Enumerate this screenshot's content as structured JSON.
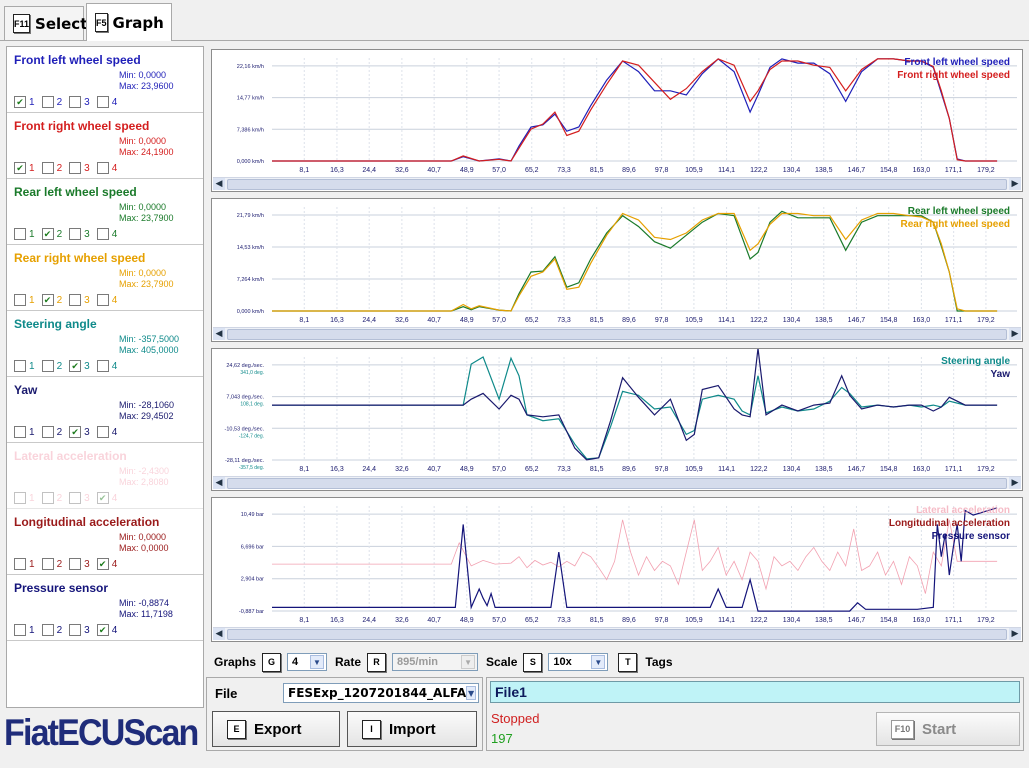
{
  "tabs": [
    {
      "key": "F11",
      "label": "Select"
    },
    {
      "key": "F5",
      "label": "Graph"
    }
  ],
  "signals": [
    {
      "name": "Front left wheel speed",
      "min": "Min: 0,0000",
      "max": "Max: 23,9600",
      "color": "#1f1fb8",
      "checked": [
        true,
        false,
        false,
        false
      ]
    },
    {
      "name": "Front right wheel speed",
      "min": "Min: 0,0000",
      "max": "Max: 24,1900",
      "color": "#d41e1e",
      "checked": [
        true,
        false,
        false,
        false
      ]
    },
    {
      "name": "Rear left wheel speed",
      "min": "Min: 0,0000",
      "max": "Max: 23,7900",
      "color": "#1a7a2a",
      "checked": [
        false,
        true,
        false,
        false
      ]
    },
    {
      "name": "Rear right wheel speed",
      "min": "Min: 0,0000",
      "max": "Max: 23,7900",
      "color": "#e6a000",
      "checked": [
        false,
        true,
        false,
        false
      ]
    },
    {
      "name": "Steering angle",
      "min": "Min: -357,5000",
      "max": "Max: 405,0000",
      "color": "#0f8a8a",
      "checked": [
        false,
        false,
        true,
        false
      ]
    },
    {
      "name": "Yaw",
      "min": "Min: -28,1060",
      "max": "Max: 29,4502",
      "color": "#1a1a6e",
      "checked": [
        false,
        false,
        true,
        false
      ]
    },
    {
      "name": "Lateral acceleration",
      "min": "Min: -2,4300",
      "max": "Max: 2,8080",
      "color": "#f2a0b0",
      "checked": [
        false,
        false,
        false,
        true
      ],
      "faint": true
    },
    {
      "name": "Longitudinal acceleration",
      "min": "Min: 0,0000",
      "max": "Max: 0,0000",
      "color": "#9a1a1a",
      "checked": [
        false,
        false,
        false,
        true
      ]
    },
    {
      "name": "Pressure sensor",
      "min": "Min: -0,8874",
      "max": "Max: 11,7198",
      "color": "#14147a",
      "checked": [
        false,
        false,
        false,
        true
      ]
    }
  ],
  "x_ticks": [
    "8,1",
    "16,3",
    "24,4",
    "32,6",
    "40,7",
    "48,9",
    "57,0",
    "65,2",
    "73,3",
    "81,5",
    "89,6",
    "97,8",
    "105,9",
    "114,1",
    "122,2",
    "130,4",
    "138,5",
    "146,7",
    "154,8",
    "163,0",
    "171,1",
    "179,2"
  ],
  "chart_data": [
    {
      "type": "line",
      "x_range": [
        0,
        187
      ],
      "y_ticks": [
        "22,16 km/h",
        "14,77 km/h",
        "7,386 km/h",
        "0,000 km/h"
      ],
      "ylim": [
        0,
        24.2
      ],
      "series": [
        {
          "name": "Front left wheel speed",
          "color": "#1f1fb8",
          "x": [
            0,
            45,
            48,
            52,
            57,
            60,
            62,
            65,
            68,
            71,
            74,
            77,
            80,
            84,
            88,
            92,
            96,
            100,
            104,
            108,
            112,
            116,
            120,
            122,
            125,
            128,
            132,
            136,
            140,
            144,
            148,
            152,
            156,
            160,
            163,
            166,
            168,
            170,
            172,
            174,
            177,
            182
          ],
          "y": [
            0,
            0,
            1,
            0,
            0.5,
            0,
            3.5,
            8,
            8.5,
            11,
            7,
            8,
            13,
            19,
            23.5,
            21,
            16.5,
            16.5,
            15.5,
            20.5,
            24,
            21,
            11.5,
            15.5,
            22,
            24,
            23,
            23,
            20.5,
            14,
            21,
            24,
            24,
            23.5,
            23.5,
            22,
            16,
            10,
            0.5,
            0,
            0,
            0
          ]
        },
        {
          "name": "Front right wheel speed",
          "color": "#d41e1e",
          "x": [
            0,
            45,
            48,
            52,
            57,
            60,
            62,
            65,
            68,
            71,
            74,
            77,
            80,
            84,
            88,
            92,
            96,
            100,
            104,
            108,
            112,
            116,
            120,
            122,
            125,
            128,
            132,
            136,
            140,
            144,
            148,
            152,
            156,
            160,
            163,
            166,
            168,
            170,
            172,
            174,
            177,
            182
          ],
          "y": [
            0,
            0,
            1.2,
            0,
            0.4,
            0,
            3,
            7.5,
            8.7,
            11.5,
            6,
            7,
            12,
            18,
            23.5,
            22.5,
            18.5,
            14.5,
            17,
            21,
            24,
            22.5,
            14,
            16.5,
            21.5,
            23.5,
            23.5,
            22.5,
            22,
            16.5,
            21.5,
            24,
            24,
            23.5,
            23.5,
            22.2,
            16.5,
            10,
            0.3,
            0,
            0,
            0
          ]
        }
      ]
    },
    {
      "type": "line",
      "x_range": [
        0,
        187
      ],
      "y_ticks": [
        "21,79 km/h",
        "14,53 km/h",
        "7,264 km/h",
        "0,000 km/h"
      ],
      "ylim": [
        0,
        24
      ],
      "series": [
        {
          "name": "Rear left wheel speed",
          "color": "#1a7a2a",
          "x": [
            0,
            45,
            48,
            50,
            52,
            57,
            60,
            62,
            65,
            68,
            71,
            74,
            77,
            80,
            84,
            88,
            92,
            96,
            100,
            104,
            108,
            112,
            116,
            120,
            122,
            125,
            128,
            132,
            136,
            140,
            144,
            148,
            152,
            156,
            160,
            163,
            166,
            168,
            170,
            172,
            174,
            177,
            182
          ],
          "y": [
            0,
            0,
            1,
            0.3,
            1,
            0.2,
            0,
            4,
            9,
            9.2,
            12.5,
            5.5,
            6.5,
            12,
            18,
            22,
            19.5,
            16,
            14.5,
            17.5,
            20.5,
            22.5,
            22,
            12,
            13.5,
            20.5,
            23,
            21.5,
            21.5,
            21.5,
            14,
            20.5,
            22,
            22,
            22,
            22,
            20.5,
            15,
            9,
            0,
            0,
            0,
            0
          ]
        },
        {
          "name": "Rear right wheel speed",
          "color": "#e6a000",
          "x": [
            0,
            45,
            48,
            50,
            52,
            57,
            60,
            62,
            65,
            68,
            71,
            74,
            77,
            80,
            84,
            88,
            92,
            96,
            100,
            104,
            108,
            112,
            116,
            120,
            122,
            125,
            128,
            132,
            136,
            140,
            144,
            148,
            152,
            156,
            160,
            163,
            166,
            168,
            170,
            172,
            174,
            177,
            182
          ],
          "y": [
            0,
            0,
            1.5,
            0.5,
            1.2,
            0.2,
            0,
            3.5,
            8,
            9,
            12,
            5,
            5.5,
            11,
            17.5,
            22.5,
            21,
            17,
            16.5,
            18,
            21,
            22.5,
            22.5,
            14,
            15.5,
            20,
            22.5,
            22.5,
            22,
            22,
            16.5,
            21,
            22.5,
            22.5,
            22,
            21.7,
            20.5,
            15.5,
            9,
            0.5,
            0,
            0,
            0
          ]
        }
      ]
    },
    {
      "type": "line",
      "x_range": [
        0,
        187
      ],
      "y_ticks": [
        "24,62 deg./sec.",
        "7,043 deg./sec.",
        "-10,53 deg./sec.",
        "-28,11 deg./sec."
      ],
      "y_ticks2": [
        "341,0 deg.",
        "108,1 deg.",
        "-124,7 deg.",
        "-357,5 deg."
      ],
      "ylim": [
        -28.11,
        24.62
      ],
      "series": [
        {
          "name": "Steering angle",
          "color": "#0f8a8a",
          "x": [
            0,
            45,
            48,
            50,
            53,
            57,
            60,
            62,
            64,
            68,
            72,
            76,
            79,
            82,
            85,
            88,
            92,
            96,
            100,
            104,
            106,
            108,
            112,
            116,
            118,
            120,
            122,
            124,
            128,
            132,
            136,
            140,
            143,
            145,
            148,
            152,
            156,
            160,
            163,
            166,
            168,
            170,
            174,
            178,
            182
          ],
          "y": [
            0,
            0,
            0,
            21,
            24.6,
            3,
            24,
            15,
            -5,
            -8,
            -7,
            -20,
            -27.5,
            -27,
            -11,
            7,
            5,
            -2,
            -1,
            -15,
            -13,
            3,
            5,
            3,
            -3,
            -5,
            15,
            -4,
            -1,
            -3,
            -2,
            2,
            9,
            6,
            -1,
            0,
            -1,
            0,
            -1,
            0,
            -1,
            2,
            0,
            0,
            0
          ]
        },
        {
          "name": "Yaw",
          "color": "#1a1a6e",
          "x": [
            0,
            45,
            48,
            50,
            53,
            57,
            60,
            62,
            64,
            68,
            72,
            76,
            79,
            82,
            85,
            88,
            92,
            96,
            100,
            104,
            106,
            108,
            112,
            116,
            118,
            120,
            122,
            124,
            128,
            132,
            136,
            140,
            143,
            145,
            148,
            152,
            156,
            160,
            163,
            166,
            168,
            170,
            174,
            178,
            182
          ],
          "y": [
            0,
            0,
            0,
            3,
            6,
            -2,
            5,
            3,
            -5,
            -6,
            -5,
            -22,
            -28,
            -27,
            -8,
            14,
            4,
            -5,
            3,
            -18,
            -15,
            8,
            10,
            -2,
            -5,
            -6,
            29,
            -5,
            0,
            -3,
            0,
            1,
            15,
            5,
            -2,
            0,
            -1,
            0,
            0,
            -3,
            -1,
            4,
            0,
            0,
            0
          ]
        }
      ]
    },
    {
      "type": "line",
      "x_range": [
        0,
        187
      ],
      "y_ticks": [
        "10,49 bar",
        "6,696 bar",
        "2,904 bar",
        "-0,887 bar"
      ],
      "ylim": [
        -0.887,
        10.49
      ],
      "series": [
        {
          "name": "Lateral acceleration",
          "color": "#f2a0b0",
          "x": [
            0,
            40,
            45,
            47,
            50,
            53,
            56,
            60,
            62,
            64,
            66,
            68,
            70,
            72,
            74,
            76,
            78,
            80,
            82,
            84,
            86,
            88,
            90,
            92,
            94,
            96,
            98,
            100,
            102,
            104,
            106,
            108,
            110,
            112,
            114,
            116,
            118,
            120,
            122,
            124,
            126,
            128,
            130,
            132,
            134,
            136,
            138,
            140,
            142,
            144,
            146,
            148,
            150,
            152,
            154,
            156,
            158,
            160,
            162,
            164,
            166,
            168,
            170,
            172,
            176,
            182
          ],
          "y": [
            4.2,
            4.2,
            4.2,
            6.5,
            4.0,
            4.6,
            4.2,
            4.3,
            5.0,
            3.8,
            4.6,
            4.1,
            4.4,
            3.9,
            4.5,
            4.0,
            5.5,
            5.0,
            3.8,
            2.5,
            4.5,
            9.0,
            5.5,
            3.0,
            5.0,
            3.5,
            4.5,
            4.0,
            2.0,
            5.5,
            9.0,
            3.5,
            4.5,
            6.0,
            3.0,
            4.5,
            2.5,
            5.5,
            4.5,
            1.5,
            5.0,
            4.0,
            4.5,
            3.5,
            5.0,
            6.0,
            4.5,
            3.5,
            5.5,
            4.0,
            8.0,
            3.5,
            4.0,
            5.5,
            3.0,
            4.5,
            2.0,
            5.0,
            4.0,
            1.0,
            5.5,
            4.0,
            9.0,
            4.5,
            4.5,
            4.5
          ]
        },
        {
          "name": "Pressure sensor",
          "color": "#14147a",
          "x": [
            0,
            35,
            42,
            46,
            48,
            50,
            52,
            53,
            54,
            55,
            56,
            70,
            72,
            74,
            76,
            110,
            112,
            114,
            118,
            120,
            122,
            124,
            145,
            147,
            149,
            162,
            166,
            167,
            168,
            169,
            170,
            171,
            172,
            173,
            174,
            176,
            182
          ],
          "y": [
            -0.5,
            -0.5,
            -0.5,
            -0.5,
            8.5,
            -0.5,
            1.5,
            0.5,
            -0.3,
            1.0,
            -0.5,
            -0.5,
            5.5,
            -0.5,
            -0.5,
            -0.5,
            1.5,
            -0.5,
            -0.5,
            2.5,
            -0.9,
            -0.9,
            -0.9,
            0.0,
            -0.7,
            -0.7,
            -0.5,
            8.5,
            5.0,
            7.5,
            3.0,
            6.0,
            8.5,
            4.5,
            10.0,
            9.5,
            10.3
          ]
        }
      ]
    }
  ],
  "panel_legends": [
    [
      {
        "name": "Front left wheel speed",
        "color": "#1f1fb8"
      },
      {
        "name": "Front right wheel speed",
        "color": "#d41e1e"
      }
    ],
    [
      {
        "name": "Rear left wheel speed",
        "color": "#1a7a2a"
      },
      {
        "name": "Rear right wheel speed",
        "color": "#e6a000"
      }
    ],
    [
      {
        "name": "Steering angle",
        "color": "#0f8a8a"
      },
      {
        "name": "Yaw",
        "color": "#1a1a6e"
      }
    ],
    [
      {
        "name": "Lateral acceleration",
        "color": "#f2a0b0"
      },
      {
        "name": "Longitudinal acceleration",
        "color": "#9a1a1a"
      },
      {
        "name": "Pressure sensor",
        "color": "#14147a"
      }
    ]
  ],
  "controls": {
    "graphs_label": "Graphs",
    "graphs_key": "G",
    "graphs_value": "4",
    "rate_label": "Rate",
    "rate_key": "R",
    "rate_value": "895/min",
    "scale_label": "Scale",
    "scale_key": "S",
    "scale_value": "10x",
    "tags_key": "T",
    "tags_label": "Tags"
  },
  "file": {
    "label": "File",
    "value": "FESExp_1207201844_ALFA",
    "name": "File1",
    "status": "Stopped",
    "count": "197"
  },
  "buttons": {
    "export_key": "E",
    "export_label": "Export",
    "import_key": "I",
    "import_label": "Import",
    "start_key": "F10",
    "start_label": "Start"
  },
  "brand": {
    "logo": "FiatECUScan",
    "color": "#1f2c7a"
  }
}
